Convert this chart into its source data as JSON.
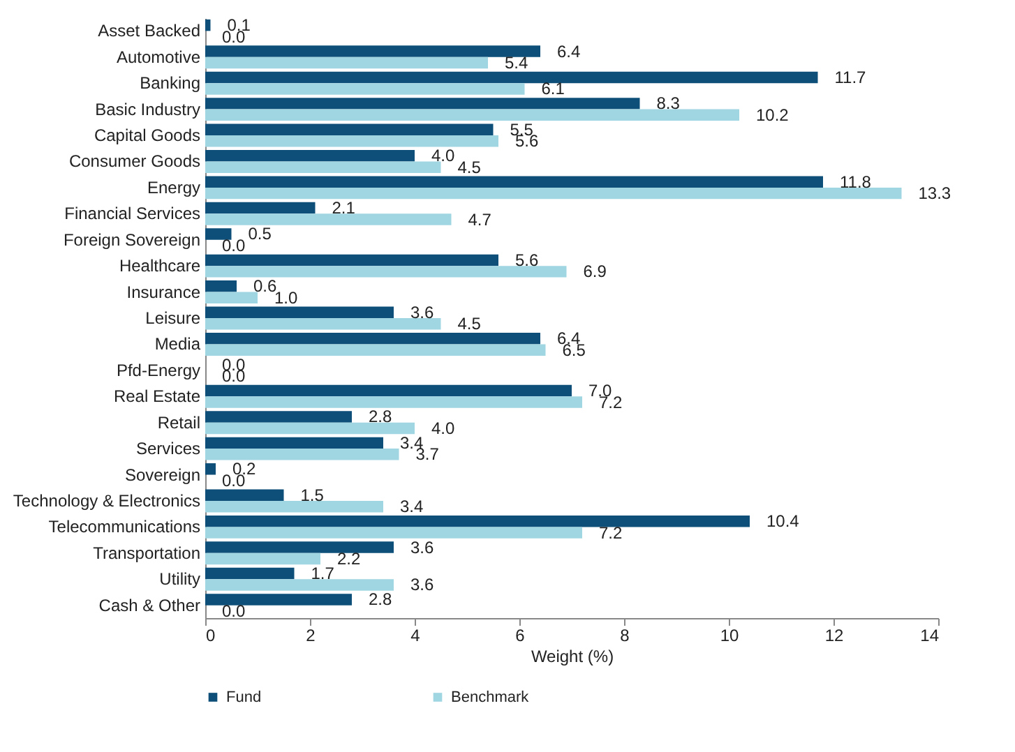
{
  "chart_data": {
    "type": "bar",
    "orientation": "horizontal",
    "xlabel": "Weight (%)",
    "categories": [
      "Asset Backed",
      "Automotive",
      "Banking",
      "Basic Industry",
      "Capital Goods",
      "Consumer Goods",
      "Energy",
      "Financial Services",
      "Foreign Sovereign",
      "Healthcare",
      "Insurance",
      "Leisure",
      "Media",
      "Pfd-Energy",
      "Real Estate",
      "Retail",
      "Services",
      "Sovereign",
      "Technology & Electronics",
      "Telecommunications",
      "Transportation",
      "Utility",
      "Cash & Other"
    ],
    "series": [
      {
        "name": "Fund",
        "color": "#0d4f78",
        "values": [
          0.1,
          6.4,
          11.7,
          8.3,
          5.5,
          4.0,
          11.8,
          2.1,
          0.5,
          5.6,
          0.6,
          3.6,
          6.4,
          0.0,
          7.0,
          2.8,
          3.4,
          0.2,
          1.5,
          10.4,
          3.6,
          1.7,
          2.8
        ],
        "value_labels": [
          "0.1",
          "6.4",
          "11.7",
          "8.3",
          "5.5",
          "4.0",
          "11.8",
          "2.1",
          "0.5",
          "5.6",
          "0.6",
          "3.6",
          "6.4",
          "0.0",
          "7.0",
          "2.8",
          "3.4",
          "0.2",
          "1.5",
          "10.4",
          "3.6",
          "1.7",
          "2.8"
        ]
      },
      {
        "name": "Benchmark",
        "color": "#9fd6e2",
        "values": [
          0.0,
          5.4,
          6.1,
          10.2,
          5.6,
          4.5,
          13.3,
          4.7,
          0.0,
          6.9,
          1.0,
          4.5,
          6.5,
          0.0,
          7.2,
          4.0,
          3.7,
          0.0,
          3.4,
          7.2,
          2.2,
          3.6,
          0.0
        ],
        "value_labels": [
          "0.0",
          "5.4",
          "6.1",
          "10.2",
          "5.6",
          "4.5",
          "13.3",
          "4.7",
          "0.0",
          "6.9",
          "1.0",
          "4.5",
          "6.5",
          "0.0",
          "7.2",
          "4.0",
          "3.7",
          "0.0",
          "3.4",
          "7.2",
          "2.2",
          "3.6",
          "0.0"
        ]
      }
    ],
    "xlim": [
      0,
      14
    ],
    "xticks": [
      0,
      2,
      4,
      6,
      8,
      10,
      12,
      14
    ],
    "legend": "bottom"
  }
}
